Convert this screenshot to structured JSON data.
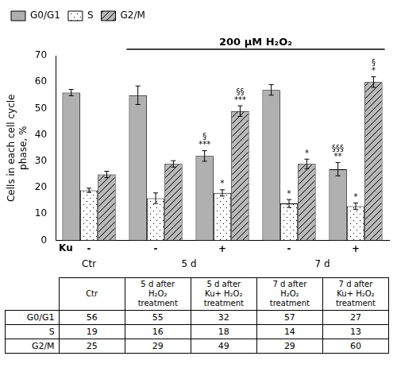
{
  "chart_data": {
    "type": "bar",
    "ylabel": "Cells in each cell cycle\nphase, %",
    "xlabel": "Ku",
    "categories": [
      "-",
      "-",
      "+",
      "-",
      "+"
    ],
    "series": [
      {
        "name": "G0/G1",
        "color": "#b0b0b0",
        "values": [
          56,
          55,
          32,
          57,
          27
        ],
        "errors": [
          1.2,
          3.5,
          2.0,
          2.0,
          2.5
        ]
      },
      {
        "name": "S",
        "color": "#ffffff",
        "values": [
          19,
          16,
          18,
          14,
          13
        ],
        "errors": [
          0.8,
          2.0,
          1.2,
          1.5,
          1.2
        ]
      },
      {
        "name": "G2/M",
        "color": "#b8b8b8",
        "values": [
          25,
          29,
          49,
          29,
          60
        ],
        "errors": [
          1.2,
          1.2,
          2.0,
          1.8,
          2.0
        ]
      }
    ],
    "ylim": [
      0,
      70
    ],
    "yticks": [
      0,
      10,
      20,
      30,
      40,
      50,
      60,
      70
    ],
    "grid": false,
    "legend": "upper left",
    "group_labels": [
      {
        "text": "Ctr",
        "categories": [
          0
        ]
      },
      {
        "text": "5 d",
        "categories": [
          1,
          2
        ]
      },
      {
        "text": "7 d",
        "categories": [
          3,
          4
        ]
      }
    ],
    "bracket": {
      "text": "200 μM H₂O₂",
      "from": 1,
      "to": 4
    },
    "annotations": [
      {
        "series": "G0/G1",
        "category": 2,
        "text": "§\n***"
      },
      {
        "series": "S",
        "category": 2,
        "text": "*"
      },
      {
        "series": "G2/M",
        "category": 2,
        "text": "§§\n***"
      },
      {
        "series": "S",
        "category": 3,
        "text": "*"
      },
      {
        "series": "G2/M",
        "category": 3,
        "text": "*"
      },
      {
        "series": "G0/G1",
        "category": 4,
        "text": "§§§\n**"
      },
      {
        "series": "S",
        "category": 4,
        "text": "*"
      },
      {
        "series": "G2/M",
        "category": 4,
        "text": "§\n*"
      }
    ],
    "table": {
      "columns": [
        "Ctr",
        "5 d after\nH₂O₂\ntreatment",
        "5 d after\nKu+ H₂O₂\ntreatment",
        "7 d after\nH₂O₂\ntreatment",
        "7 d after\nKu+ H₂O₂\ntreatment"
      ],
      "rows": [
        "G0/G1",
        "S",
        "G2/M"
      ],
      "cells": [
        [
          56,
          55,
          32,
          57,
          27
        ],
        [
          19,
          16,
          18,
          14,
          13
        ],
        [
          25,
          29,
          49,
          29,
          60
        ]
      ]
    }
  }
}
